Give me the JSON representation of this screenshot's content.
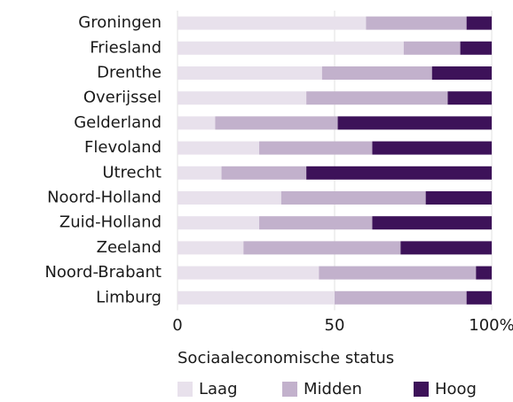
{
  "chart_data": {
    "type": "stacked-barh",
    "categories": [
      "Groningen",
      "Friesland",
      "Drenthe",
      "Overijssel",
      "Gelderland",
      "Flevoland",
      "Utrecht",
      "Noord-Holland",
      "Zuid-Holland",
      "Zeeland",
      "Noord-Brabant",
      "Limburg"
    ],
    "series": [
      {
        "name": "Laag",
        "color": "#e8e1ec",
        "values": [
          60,
          72,
          46,
          41,
          12,
          26,
          14,
          33,
          26,
          21,
          45,
          50
        ]
      },
      {
        "name": "Midden",
        "color": "#c2b1cc",
        "values": [
          32,
          18,
          35,
          45,
          39,
          36,
          27,
          46,
          36,
          50,
          50,
          42
        ]
      },
      {
        "name": "Hoog",
        "color": "#3d1259",
        "values": [
          8,
          10,
          19,
          14,
          49,
          38,
          59,
          21,
          38,
          29,
          5,
          8
        ]
      }
    ],
    "xlabel": "Sociaaleconomische status",
    "xlim": [
      0,
      100
    ],
    "xticks": [
      0,
      50,
      {
        "value": 100,
        "label": "100%"
      }
    ],
    "grid": true,
    "legend": "bottom"
  }
}
